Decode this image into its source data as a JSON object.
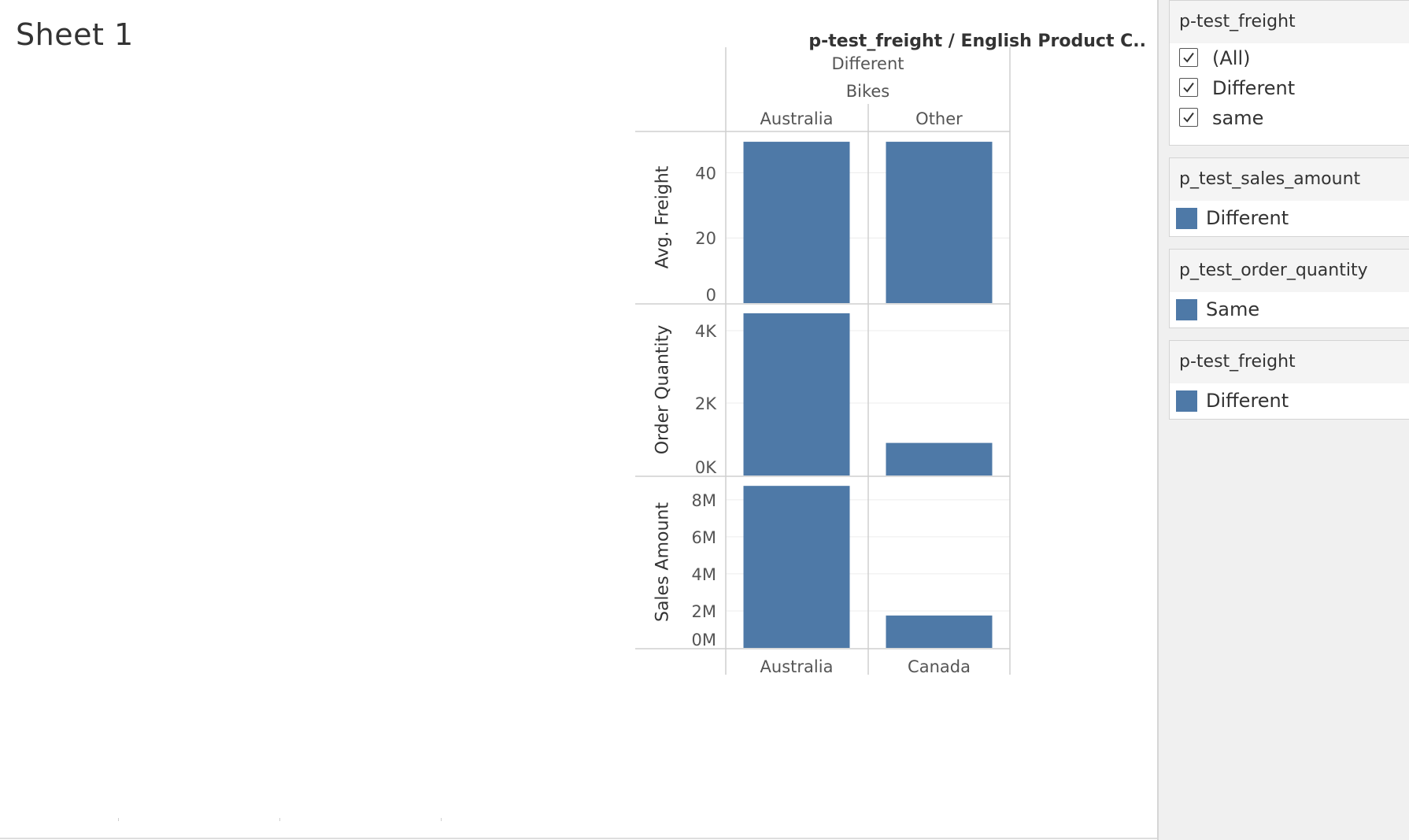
{
  "sheet": {
    "title": "Sheet 1"
  },
  "chart_data": {
    "type": "bar",
    "header_title": "p-test_freight  /  English Product C..",
    "column_header_levels": [
      "Different",
      "Bikes"
    ],
    "columns_top": [
      "Australia",
      "Other"
    ],
    "columns_bottom": [
      "Australia",
      "Canada"
    ],
    "bar_color": "#4e79a7",
    "panes": [
      {
        "measure": "Avg. Freight",
        "ylim": [
          0,
          50
        ],
        "ticks": [
          {
            "value": 0,
            "label": "0"
          },
          {
            "value": 20,
            "label": "20"
          },
          {
            "value": 40,
            "label": "40"
          }
        ],
        "values": [
          49.5,
          49.5
        ]
      },
      {
        "measure": "Order Quantity",
        "ylim": [
          0,
          4500
        ],
        "ticks": [
          {
            "value": 0,
            "label": "0K"
          },
          {
            "value": 2000,
            "label": "2K"
          },
          {
            "value": 4000,
            "label": "4K"
          }
        ],
        "values": [
          4480,
          900
        ]
      },
      {
        "measure": "Sales Amount",
        "ylim": [
          0,
          8800000
        ],
        "ticks": [
          {
            "value": 0,
            "label": "0M"
          },
          {
            "value": 2000000,
            "label": "2M"
          },
          {
            "value": 4000000,
            "label": "4M"
          },
          {
            "value": 6000000,
            "label": "6M"
          },
          {
            "value": 8000000,
            "label": "8M"
          }
        ],
        "values": [
          8750000,
          1750000
        ]
      }
    ],
    "grid": true
  },
  "filter_card": {
    "title": "p-test_freight",
    "items": [
      {
        "label": "(All)",
        "checked": true
      },
      {
        "label": "Different",
        "checked": true
      },
      {
        "label": "same",
        "checked": true
      }
    ]
  },
  "legends": [
    {
      "title": "p_test_sales_amount",
      "item": "Different",
      "color": "#4e79a7"
    },
    {
      "title": "p_test_order_quantity",
      "item": "Same",
      "color": "#4e79a7"
    },
    {
      "title": "p-test_freight",
      "item": "Different",
      "color": "#4e79a7"
    }
  ]
}
